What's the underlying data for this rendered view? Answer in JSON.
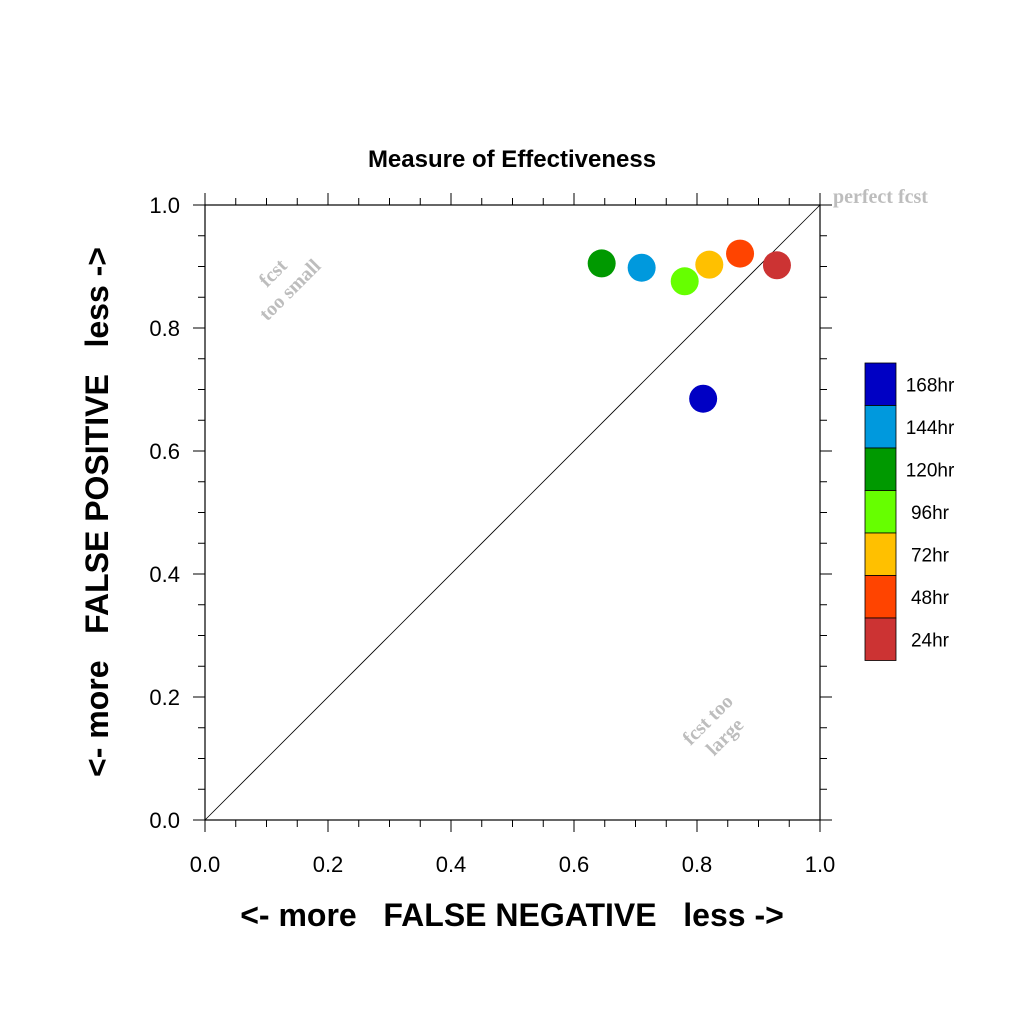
{
  "chart_data": {
    "type": "scatter",
    "title": "Measure of Effectiveness",
    "xlabel": "<- more   FALSE NEGATIVE   less ->",
    "ylabel": "<- more   FALSE POSITIVE   less ->",
    "xlim": [
      0.0,
      1.0
    ],
    "ylim": [
      0.0,
      1.0
    ],
    "xticks": [
      "0.0",
      "0.2",
      "0.4",
      "0.6",
      "0.8",
      "1.0"
    ],
    "yticks": [
      "0.0",
      "0.2",
      "0.4",
      "0.6",
      "0.8",
      "1.0"
    ],
    "grid": false,
    "diagonal_line": true,
    "annotations": {
      "perfect": "perfect fcst",
      "small_line1": "fcst",
      "small_line2": "too small",
      "large_line1": "fcst too",
      "large_line2": "large"
    },
    "legend_position": "right",
    "series": [
      {
        "name": "168hr",
        "color": "#0000c4",
        "x": 0.81,
        "y": 0.685
      },
      {
        "name": "144hr",
        "color": "#0099dd",
        "x": 0.71,
        "y": 0.898
      },
      {
        "name": "120hr",
        "color": "#009900",
        "x": 0.645,
        "y": 0.905
      },
      {
        "name": "96hr",
        "color": "#66ff00",
        "x": 0.78,
        "y": 0.876
      },
      {
        "name": "72hr",
        "color": "#ffc000",
        "x": 0.82,
        "y": 0.903
      },
      {
        "name": "48hr",
        "color": "#ff4400",
        "x": 0.87,
        "y": 0.921
      },
      {
        "name": "24hr",
        "color": "#cc3333",
        "x": 0.93,
        "y": 0.902
      }
    ]
  }
}
